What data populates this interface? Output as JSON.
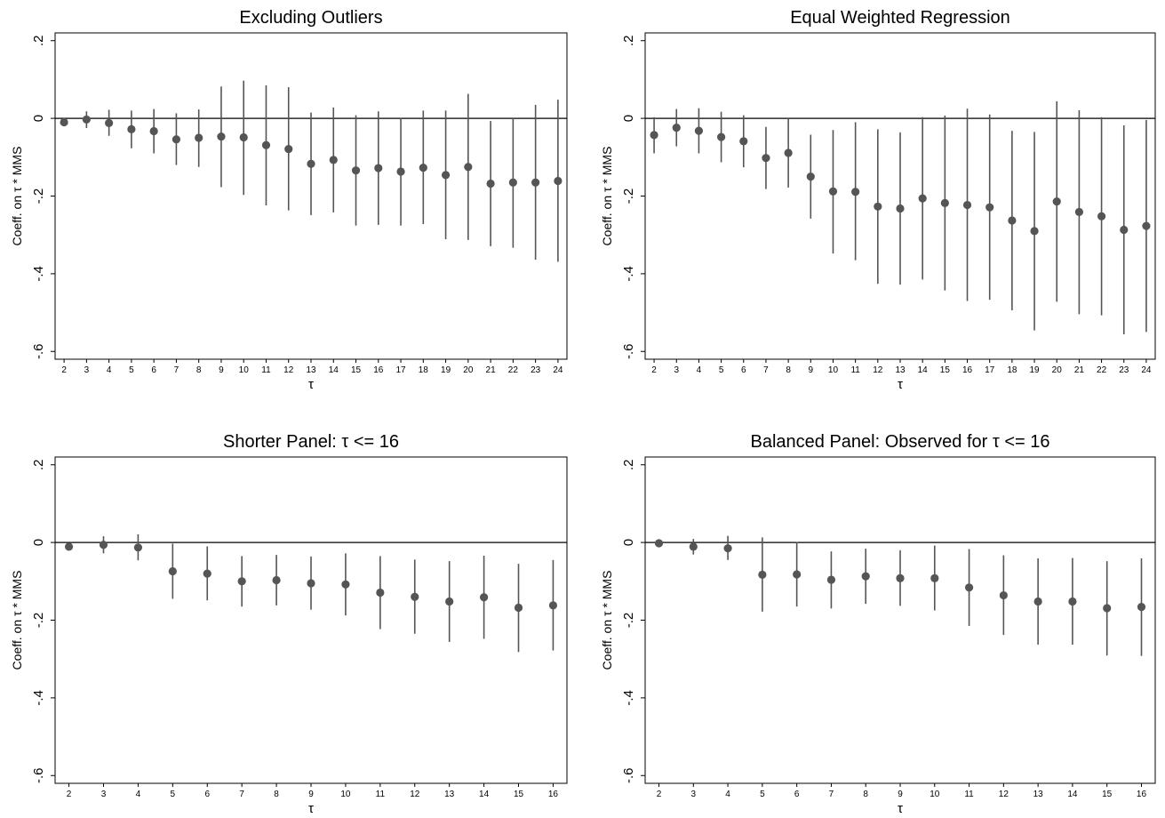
{
  "colors": {
    "marker": "#555555",
    "line": "#555555",
    "axis": "#000000",
    "background": "#ffffff"
  },
  "chart_data": [
    {
      "type": "scatter",
      "title": "Excluding Outliers",
      "xlabel": "τ",
      "ylabel": "Coeff. on τ * MMS",
      "ylim": [
        -0.6,
        0.2
      ],
      "yticks": [
        0.2,
        0,
        -0.2,
        -0.4,
        -0.6
      ],
      "ytick_labels": [
        ".2",
        "0",
        "-.2",
        "-.4",
        "-.6"
      ],
      "grid": false,
      "reference_line": 0,
      "x": [
        2,
        3,
        4,
        5,
        6,
        7,
        8,
        9,
        10,
        11,
        12,
        13,
        14,
        15,
        16,
        17,
        18,
        19,
        20,
        21,
        22,
        23,
        24
      ],
      "xtick_labels": [
        "2",
        "3",
        "4",
        "5",
        "6",
        "7",
        "8",
        "9",
        "10",
        "11",
        "12",
        "13",
        "14",
        "15",
        "16",
        "17",
        "18",
        "19",
        "20",
        "21",
        "22",
        "23",
        "24"
      ],
      "point": [
        -0.01,
        -0.003,
        -0.012,
        -0.028,
        -0.033,
        -0.054,
        -0.05,
        -0.047,
        -0.049,
        -0.069,
        -0.079,
        -0.117,
        -0.107,
        -0.134,
        -0.128,
        -0.137,
        -0.127,
        -0.146,
        -0.125,
        -0.168,
        -0.165,
        -0.165,
        -0.161
      ],
      "ci_low": [
        -0.01,
        -0.025,
        -0.045,
        -0.077,
        -0.09,
        -0.12,
        -0.125,
        -0.177,
        -0.197,
        -0.224,
        -0.237,
        -0.249,
        -0.242,
        -0.276,
        -0.274,
        -0.276,
        -0.272,
        -0.311,
        -0.313,
        -0.329,
        -0.333,
        -0.364,
        -0.369
      ],
      "ci_high": [
        -0.01,
        0.018,
        0.022,
        0.02,
        0.024,
        0.013,
        0.023,
        0.082,
        0.097,
        0.085,
        0.08,
        0.015,
        0.028,
        0.008,
        0.018,
        0.002,
        0.02,
        0.02,
        0.063,
        -0.007,
        0.002,
        0.035,
        0.048
      ]
    },
    {
      "type": "scatter",
      "title": "Equal Weighted Regression",
      "xlabel": "τ",
      "ylabel": "Coeff. on τ * MMS",
      "ylim": [
        -0.6,
        0.2
      ],
      "yticks": [
        0.2,
        0,
        -0.2,
        -0.4,
        -0.6
      ],
      "ytick_labels": [
        ".2",
        "0",
        "-.2",
        "-.4",
        "-.6"
      ],
      "grid": false,
      "reference_line": 0,
      "x": [
        2,
        3,
        4,
        5,
        6,
        7,
        8,
        9,
        10,
        11,
        12,
        13,
        14,
        15,
        16,
        17,
        18,
        19,
        20,
        21,
        22,
        23,
        24
      ],
      "xtick_labels": [
        "2",
        "3",
        "4",
        "5",
        "6",
        "7",
        "8",
        "9",
        "10",
        "11",
        "12",
        "13",
        "14",
        "15",
        "16",
        "17",
        "18",
        "19",
        "20",
        "21",
        "22",
        "23",
        "24"
      ],
      "point": [
        -0.043,
        -0.024,
        -0.032,
        -0.048,
        -0.059,
        -0.102,
        -0.089,
        -0.15,
        -0.188,
        -0.189,
        -0.227,
        -0.232,
        -0.206,
        -0.218,
        -0.223,
        -0.229,
        -0.263,
        -0.29,
        -0.214,
        -0.241,
        -0.252,
        -0.287,
        -0.277
      ],
      "ci_low": [
        -0.09,
        -0.072,
        -0.09,
        -0.113,
        -0.126,
        -0.182,
        -0.178,
        -0.258,
        -0.348,
        -0.365,
        -0.426,
        -0.428,
        -0.415,
        -0.443,
        -0.47,
        -0.467,
        -0.494,
        -0.546,
        -0.472,
        -0.504,
        -0.507,
        -0.556,
        -0.55
      ],
      "ci_high": [
        0.003,
        0.024,
        0.026,
        0.017,
        0.008,
        -0.022,
        0.0,
        -0.042,
        -0.03,
        -0.01,
        -0.028,
        -0.036,
        0.003,
        0.007,
        0.025,
        0.01,
        -0.032,
        -0.035,
        0.044,
        0.021,
        0.003,
        -0.018,
        -0.004
      ]
    },
    {
      "type": "scatter",
      "title": "Shorter Panel: τ <= 16",
      "xlabel": "τ",
      "ylabel": "Coeff. on τ * MMS",
      "ylim": [
        -0.6,
        0.2
      ],
      "yticks": [
        0.2,
        0,
        -0.2,
        -0.4,
        -0.6
      ],
      "ytick_labels": [
        ".2",
        "0",
        "-.2",
        "-.4",
        "-.6"
      ],
      "grid": false,
      "reference_line": 0,
      "x": [
        2,
        3,
        4,
        5,
        6,
        7,
        8,
        9,
        10,
        11,
        12,
        13,
        14,
        15,
        16
      ],
      "xtick_labels": [
        "2",
        "3",
        "4",
        "5",
        "6",
        "7",
        "8",
        "9",
        "10",
        "11",
        "12",
        "13",
        "14",
        "15",
        "16"
      ],
      "point": [
        -0.011,
        -0.006,
        -0.013,
        -0.074,
        -0.08,
        -0.1,
        -0.097,
        -0.105,
        -0.108,
        -0.129,
        -0.14,
        -0.152,
        -0.141,
        -0.168,
        -0.162
      ],
      "ci_low": [
        -0.011,
        -0.028,
        -0.046,
        -0.145,
        -0.149,
        -0.165,
        -0.162,
        -0.173,
        -0.188,
        -0.223,
        -0.235,
        -0.256,
        -0.248,
        -0.282,
        -0.278
      ],
      "ci_high": [
        -0.011,
        0.016,
        0.021,
        -0.003,
        -0.01,
        -0.035,
        -0.032,
        -0.036,
        -0.028,
        -0.035,
        -0.044,
        -0.048,
        -0.034,
        -0.055,
        -0.045
      ]
    },
    {
      "type": "scatter",
      "title": "Balanced Panel: Observed for τ <= 16",
      "xlabel": "τ",
      "ylabel": "Coeff. on τ * MMS",
      "ylim": [
        -0.6,
        0.2
      ],
      "yticks": [
        0.2,
        0,
        -0.2,
        -0.4,
        -0.6
      ],
      "ytick_labels": [
        ".2",
        "0",
        "-.2",
        "-.4",
        "-.6"
      ],
      "grid": false,
      "reference_line": 0,
      "x": [
        2,
        3,
        4,
        5,
        6,
        7,
        8,
        9,
        10,
        11,
        12,
        13,
        14,
        15,
        16
      ],
      "xtick_labels": [
        "2",
        "3",
        "4",
        "5",
        "6",
        "7",
        "8",
        "9",
        "10",
        "11",
        "12",
        "13",
        "14",
        "15",
        "16"
      ],
      "point": [
        -0.002,
        -0.011,
        -0.015,
        -0.083,
        -0.082,
        -0.096,
        -0.087,
        -0.092,
        -0.092,
        -0.116,
        -0.136,
        -0.152,
        -0.152,
        -0.169,
        -0.166
      ],
      "ci_low": [
        -0.002,
        -0.031,
        -0.045,
        -0.178,
        -0.165,
        -0.17,
        -0.158,
        -0.163,
        -0.175,
        -0.215,
        -0.238,
        -0.263,
        -0.263,
        -0.291,
        -0.292
      ],
      "ci_high": [
        -0.002,
        0.009,
        0.017,
        0.013,
        0.001,
        -0.023,
        -0.016,
        -0.02,
        -0.008,
        -0.017,
        -0.033,
        -0.041,
        -0.04,
        -0.048,
        -0.041
      ]
    }
  ]
}
